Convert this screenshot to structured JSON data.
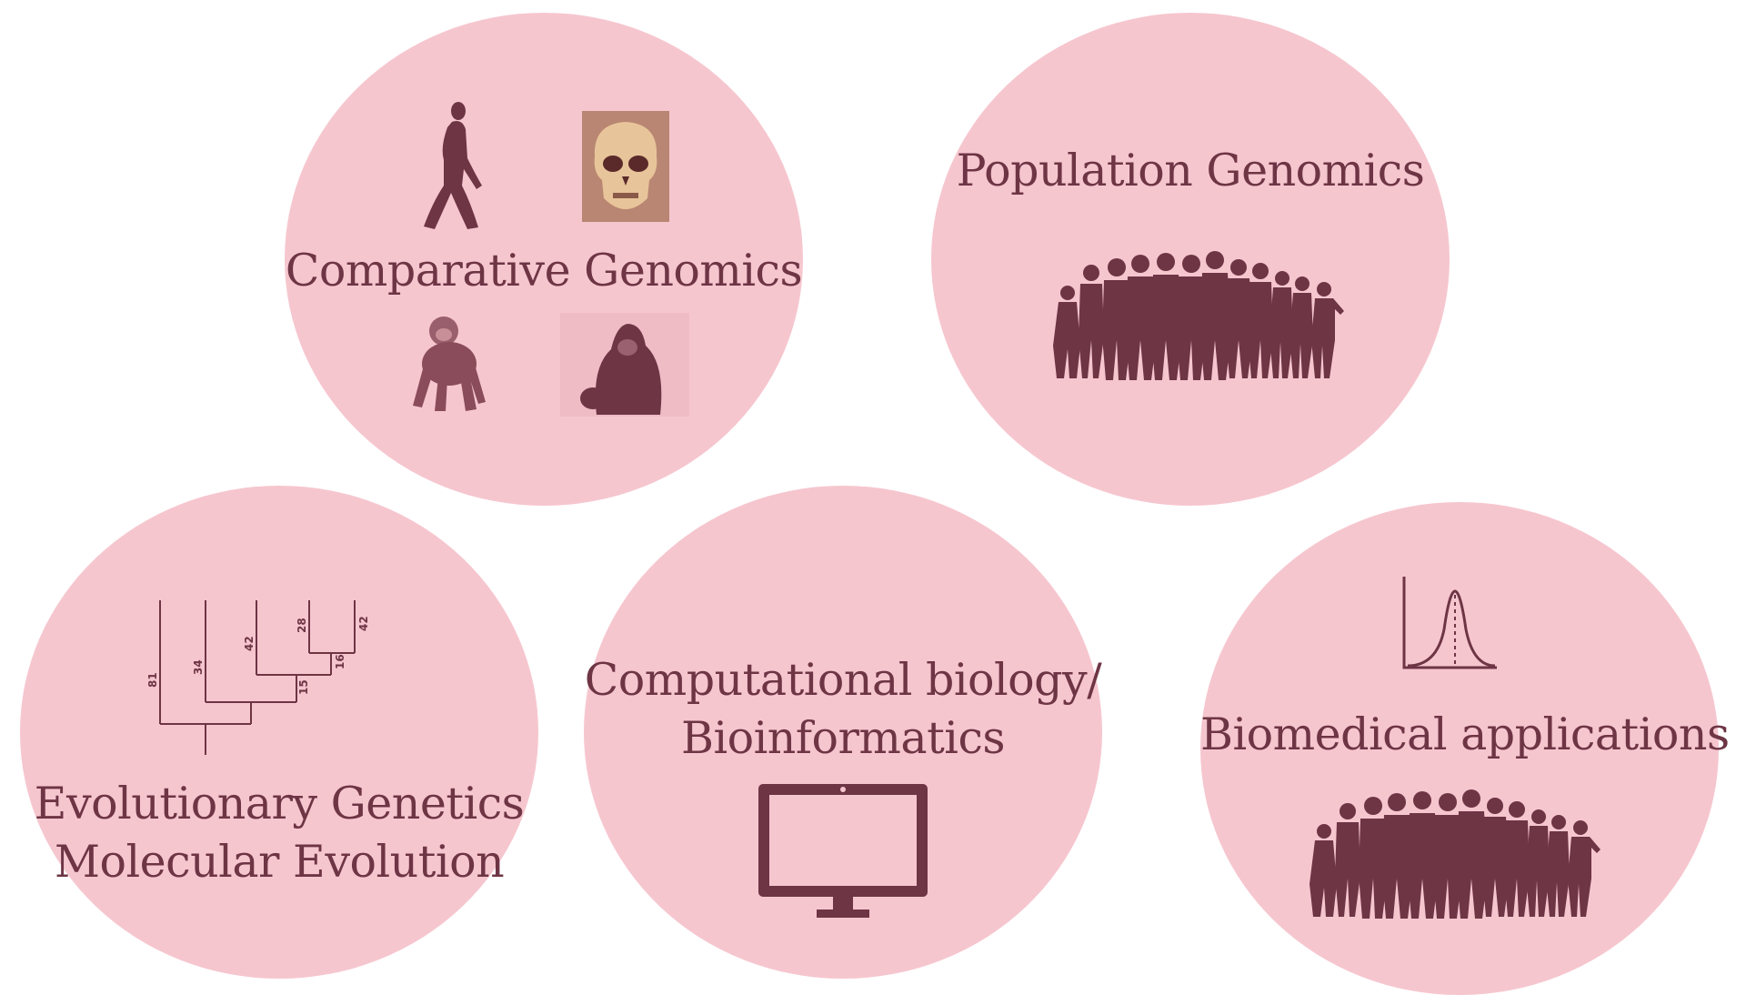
{
  "colors": {
    "background": "#ffffff",
    "circle_fill": "#f6c6cf",
    "ink": "#6e3545"
  },
  "topics": {
    "comparative": {
      "label": "Comparative Genomics"
    },
    "population": {
      "label": "Population Genomics"
    },
    "evolutionary": {
      "line1": "Evolutionary Genetics",
      "line2": "Molecular Evolution"
    },
    "computational": {
      "line1": "Computational biology/",
      "line2": "Bioinformatics"
    },
    "biomedical": {
      "label": "Biomedical applications"
    }
  },
  "phylogeny": {
    "labels": [
      "81",
      "34",
      "42",
      "28",
      "42",
      "16",
      "15"
    ]
  }
}
